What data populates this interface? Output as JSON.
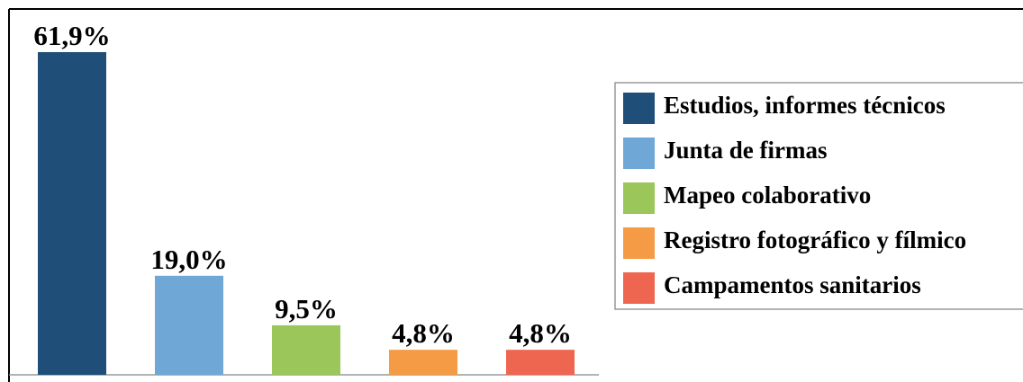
{
  "chart_data": {
    "type": "bar",
    "categories": [
      "Estudios, informes técnicos",
      "Junta de firmas",
      "Mapeo colaborativo",
      "Registro fotográfico y fílmico",
      "Campamentos sanitarios"
    ],
    "values": [
      61.9,
      19.0,
      9.5,
      4.8,
      4.8
    ],
    "value_labels": [
      "61,9%",
      "19,0%",
      "9,5%",
      "4,8%",
      "4,8%"
    ],
    "colors": [
      "#1f4e79",
      "#6fa8d6",
      "#9bc65a",
      "#f59a45",
      "#ee6650"
    ],
    "legend": "right"
  }
}
